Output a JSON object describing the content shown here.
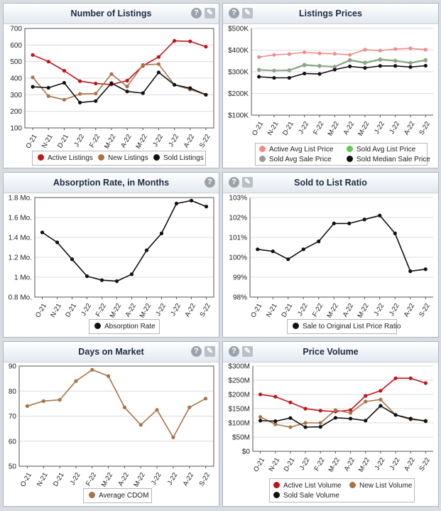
{
  "colors": {
    "active_red": "#c0141c",
    "new_brown": "#a87348",
    "sold_black": "#111111",
    "active_pink": "#f08c8c",
    "sold_green": "#5ccc4a",
    "sold_gray": "#9a9a9a"
  },
  "icons": {
    "help": "help-icon",
    "tool": "wrench-icon"
  },
  "chart_data": [
    {
      "id": "listings",
      "type": "line",
      "title": "Number of Listings",
      "categories": [
        "O-21",
        "N-21",
        "D-21",
        "J-22",
        "F-22",
        "M-22",
        "A-22",
        "M-22",
        "J-22",
        "J-22",
        "A-22",
        "S-22"
      ],
      "ylim": [
        100,
        700
      ],
      "yticks": [
        100,
        200,
        300,
        400,
        500,
        600,
        700
      ],
      "ytick_labels": [
        "100",
        "200",
        "300",
        "400",
        "500",
        "600",
        "700"
      ],
      "series": [
        {
          "name": "Active Listings",
          "color": "#c0141c",
          "values": [
            540,
            500,
            445,
            382,
            368,
            362,
            385,
            475,
            528,
            625,
            622,
            590
          ]
        },
        {
          "name": "New Listings",
          "color": "#a87348",
          "values": [
            405,
            292,
            270,
            305,
            307,
            425,
            350,
            480,
            485,
            360,
            332,
            300
          ]
        },
        {
          "name": "Sold Listings",
          "color": "#111111",
          "values": [
            348,
            342,
            372,
            253,
            262,
            370,
            320,
            310,
            435,
            360,
            340,
            300
          ]
        }
      ]
    },
    {
      "id": "prices",
      "type": "line",
      "title": "Listings Prices",
      "categories": [
        "O-21",
        "N-21",
        "D-21",
        "J-22",
        "F-22",
        "M-22",
        "A-22",
        "M-22",
        "J-22",
        "J-22",
        "A-22",
        "S-22"
      ],
      "ylim": [
        100000,
        500000
      ],
      "yticks": [
        100000,
        200000,
        300000,
        400000,
        500000
      ],
      "ytick_labels": [
        "$100K",
        "$200K",
        "$300K",
        "$400K",
        "$500K"
      ],
      "series": [
        {
          "name": "Active Avg List Price",
          "color": "#f08c8c",
          "values": [
            368000,
            378000,
            382000,
            390000,
            385000,
            383000,
            378000,
            402000,
            398000,
            405000,
            408000,
            402000
          ]
        },
        {
          "name": "Sold Avg List Price",
          "color": "#5ccc4a",
          "values": [
            310000,
            306000,
            308000,
            333000,
            328000,
            324000,
            355000,
            343000,
            358000,
            352000,
            342000,
            355000
          ]
        },
        {
          "name": "Sold Avg Sale Price",
          "color": "#9a9a9a",
          "values": [
            308000,
            305000,
            306000,
            330000,
            326000,
            322000,
            352000,
            340000,
            355000,
            350000,
            340000,
            352000
          ]
        },
        {
          "name": "Sold Median Sale Price",
          "color": "#111111",
          "values": [
            277000,
            272000,
            272000,
            292000,
            290000,
            310000,
            325000,
            318000,
            327000,
            327000,
            322000,
            328000
          ]
        }
      ]
    },
    {
      "id": "absorption",
      "type": "line",
      "title": "Absorption Rate, in Months",
      "categories": [
        "O-21",
        "N-21",
        "D-21",
        "J-22",
        "F-22",
        "M-22",
        "A-22",
        "M-22",
        "J-22",
        "J-22",
        "A-22",
        "S-22"
      ],
      "ylim": [
        0.8,
        1.8
      ],
      "yticks": [
        0.8,
        1.0,
        1.2,
        1.4,
        1.6,
        1.8
      ],
      "ytick_labels": [
        "0.8 Mo.",
        "1 Mo.",
        "1.2 Mo.",
        "1.4 Mo.",
        "1.6 Mo.",
        "1.8 Mo."
      ],
      "series": [
        {
          "name": "Absorption Rate",
          "color": "#111111",
          "values": [
            1.45,
            1.35,
            1.18,
            1.01,
            0.97,
            0.96,
            1.03,
            1.27,
            1.44,
            1.74,
            1.77,
            1.71
          ]
        }
      ]
    },
    {
      "id": "ratio",
      "type": "line",
      "title": "Sold to List Ratio",
      "categories": [
        "O-21",
        "N-21",
        "D-21",
        "J-22",
        "F-22",
        "M-22",
        "A-22",
        "M-22",
        "J-22",
        "J-22",
        "A-22",
        "S-22"
      ],
      "ylim": [
        98,
        103
      ],
      "yticks": [
        98,
        99,
        100,
        101,
        102,
        103
      ],
      "ytick_labels": [
        "98%",
        "99%",
        "100%",
        "101%",
        "102%",
        "103%"
      ],
      "series": [
        {
          "name": "Sale to Original List Price Ratio",
          "color": "#111111",
          "values": [
            100.4,
            100.3,
            99.9,
            100.4,
            100.8,
            101.7,
            101.7,
            101.9,
            102.1,
            101.2,
            99.3,
            99.4
          ]
        }
      ]
    },
    {
      "id": "dom",
      "type": "line",
      "title": "Days on Market",
      "categories": [
        "O-21",
        "N-21",
        "D-21",
        "J-22",
        "F-22",
        "M-22",
        "A-22",
        "M-22",
        "J-22",
        "J-22",
        "A-22",
        "S-22"
      ],
      "ylim": [
        50,
        90
      ],
      "yticks": [
        50,
        60,
        70,
        80,
        90
      ],
      "ytick_labels": [
        "50",
        "60",
        "70",
        "80",
        "90"
      ],
      "series": [
        {
          "name": "Average CDOM",
          "color": "#a87348",
          "values": [
            74,
            76,
            76.5,
            84,
            88.5,
            86,
            73.5,
            66.5,
            72.5,
            61.5,
            73.5,
            77
          ]
        }
      ]
    },
    {
      "id": "volume",
      "type": "line",
      "title": "Price Volume",
      "categories": [
        "O-21",
        "N-21",
        "D-21",
        "J-22",
        "F-22",
        "M-22",
        "A-22",
        "M-22",
        "J-22",
        "J-22",
        "A-22",
        "S-22"
      ],
      "ylim": [
        0,
        300
      ],
      "yticks": [
        0,
        50,
        100,
        150,
        200,
        250,
        300
      ],
      "ytick_labels": [
        "$0",
        "$50M",
        "$100M",
        "$150M",
        "$200M",
        "$250M",
        "$300M"
      ],
      "series": [
        {
          "name": "Active List Volume",
          "color": "#c0141c",
          "values": [
            200,
            192,
            172,
            150,
            143,
            140,
            145,
            195,
            213,
            257,
            257,
            240
          ]
        },
        {
          "name": "New List Volume",
          "color": "#a87348",
          "values": [
            121,
            95,
            85,
            100,
            100,
            145,
            135,
            175,
            182,
            128,
            112,
            108
          ]
        },
        {
          "name": "Sold Sale Volume",
          "color": "#111111",
          "values": [
            108,
            106,
            117,
            85,
            86,
            118,
            115,
            108,
            160,
            128,
            115,
            106
          ]
        }
      ]
    }
  ]
}
